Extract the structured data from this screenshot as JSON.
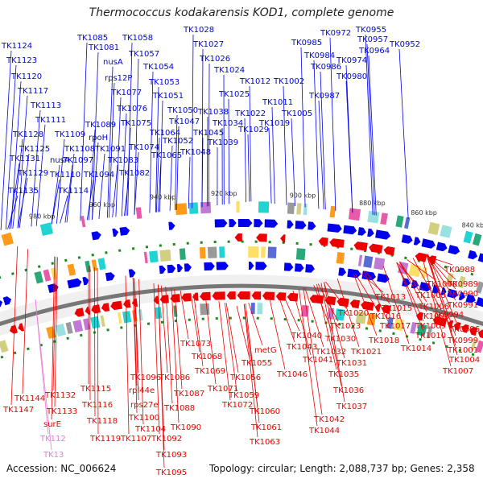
{
  "title": "Thermococcus kodakarensis KOD1, complete genome",
  "footer": {
    "accession": "Accession: NC_006624",
    "topology": "Topology: circular; Length: 2,088,737 bp; Genes: 2,358"
  },
  "colors": {
    "forward": "#0000ee",
    "reverse": "#ee0000",
    "rna": "#e87ad6",
    "backbone": "#777777",
    "gc": "#1a8a1a"
  },
  "ticks": [
    "820 kbp",
    "840 kbp",
    "860 kbp",
    "880 kbp",
    "900 kbp",
    "920 kbp",
    "940 kbp",
    "960 kbp",
    "980 kbp"
  ],
  "forward_labels": [
    "TK1124",
    "TK1123",
    "TK1120",
    "TK1117",
    "TK1113",
    "TK1111",
    "TK1128",
    "TK1125",
    "TK1131",
    "TK1129",
    "TK1135",
    "TK1109",
    "nusA",
    "TK1108",
    "TK1110",
    "TK1114",
    "TK1097",
    "TK1094",
    "TK1085",
    "TK1081",
    "nusA",
    "rps12P",
    "TK1077",
    "TK1076",
    "TK1075",
    "TK1089",
    "rpoH",
    "TK1091",
    "TK1083",
    "TK1082",
    "TK1058",
    "TK1057",
    "TK1054",
    "TK1053",
    "TK1051",
    "TK1074",
    "TK1064",
    "TK1050",
    "TK1047",
    "TK1052",
    "TK1065",
    "TK1045",
    "TK1048",
    "TK1028",
    "TK1027",
    "TK1026",
    "TK1024",
    "TK1025",
    "TK1038",
    "TK1034",
    "TK1039",
    "TK1022",
    "TK1029",
    "TK1019",
    "TK1012",
    "TK1011",
    "TK1002",
    "TK1005",
    "TK0985",
    "TK0984",
    "TK0986",
    "TK0987",
    "TK0972",
    "TK0974",
    "TK0980",
    "TK0955",
    "TK0957",
    "TK0964",
    "TK0952"
  ],
  "reverse_labels": [
    "TK0988",
    "TK0989",
    "TK1000",
    "TK0990",
    "TK1003",
    "TK0991",
    "TK1013",
    "TK1006",
    "TK0994",
    "TK1015",
    "TK1008",
    "TK0996",
    "TK1016",
    "TK1009",
    "TK0999",
    "TK1020",
    "TK1017",
    "TK1010",
    "TK1001",
    "TK1023",
    "TK1014",
    "TK1004",
    "TK1018",
    "TK1007",
    "TK1021",
    "TK1040",
    "TK1043",
    "TK1030",
    "TK1032",
    "TK1031",
    "TK1041",
    "TK1046",
    "TK1035",
    "TK1036",
    "TK1037",
    "TK1042",
    "TK1044",
    "TK1073",
    "metG",
    "TK1055",
    "TK1068",
    "TK1069",
    "TK1056",
    "TK1071",
    "TK1059",
    "TK1072",
    "TK1060",
    "TK1061",
    "TK1063",
    "TK1096",
    "TK1086",
    "rpl44e",
    "TK1087",
    "rps27e",
    "TK1088",
    "TK1100",
    "TK1090",
    "TK1104",
    "TK1107",
    "TK1092",
    "TK1093",
    "TK1095",
    "TK1115",
    "TK1116",
    "TK1118",
    "TK1119",
    "TK1144",
    "TK1132",
    "TK1147",
    "TK1133",
    "surE"
  ],
  "rna_labels": [
    "TK112",
    "TK13"
  ]
}
